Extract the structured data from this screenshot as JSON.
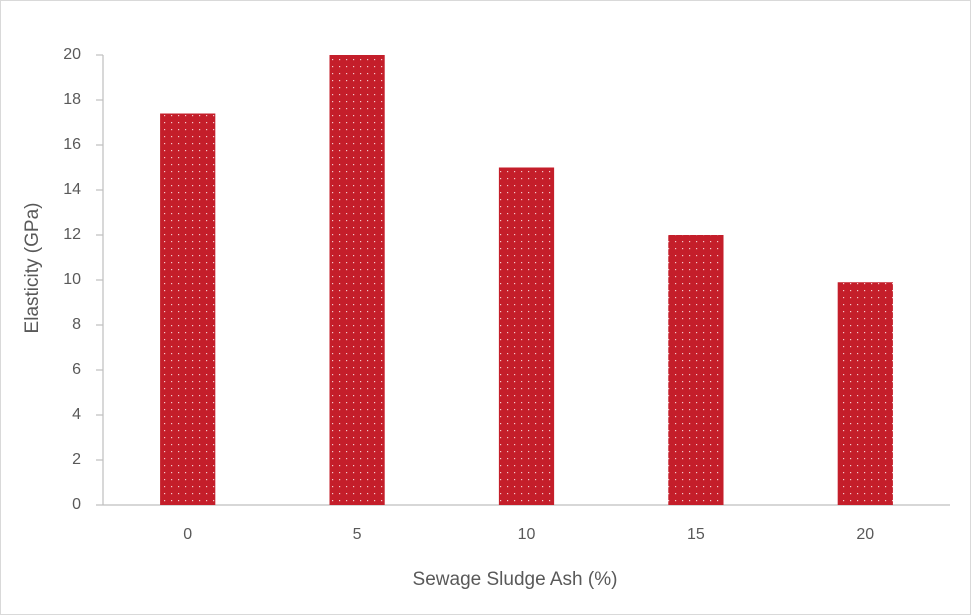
{
  "chart_data": {
    "type": "bar",
    "x_label": "Sewage Sludge Ash (%)",
    "y_label": "Elasticity (GPa)",
    "categories": [
      "0",
      "5",
      "10",
      "15",
      "20"
    ],
    "values": [
      17.4,
      20,
      15,
      12,
      9.9
    ],
    "color": "#c41e2a",
    "ylim": [
      0,
      20
    ],
    "yticks": [
      0,
      2,
      4,
      6,
      8,
      10,
      12,
      14,
      16,
      18,
      20
    ],
    "grid": false
  }
}
